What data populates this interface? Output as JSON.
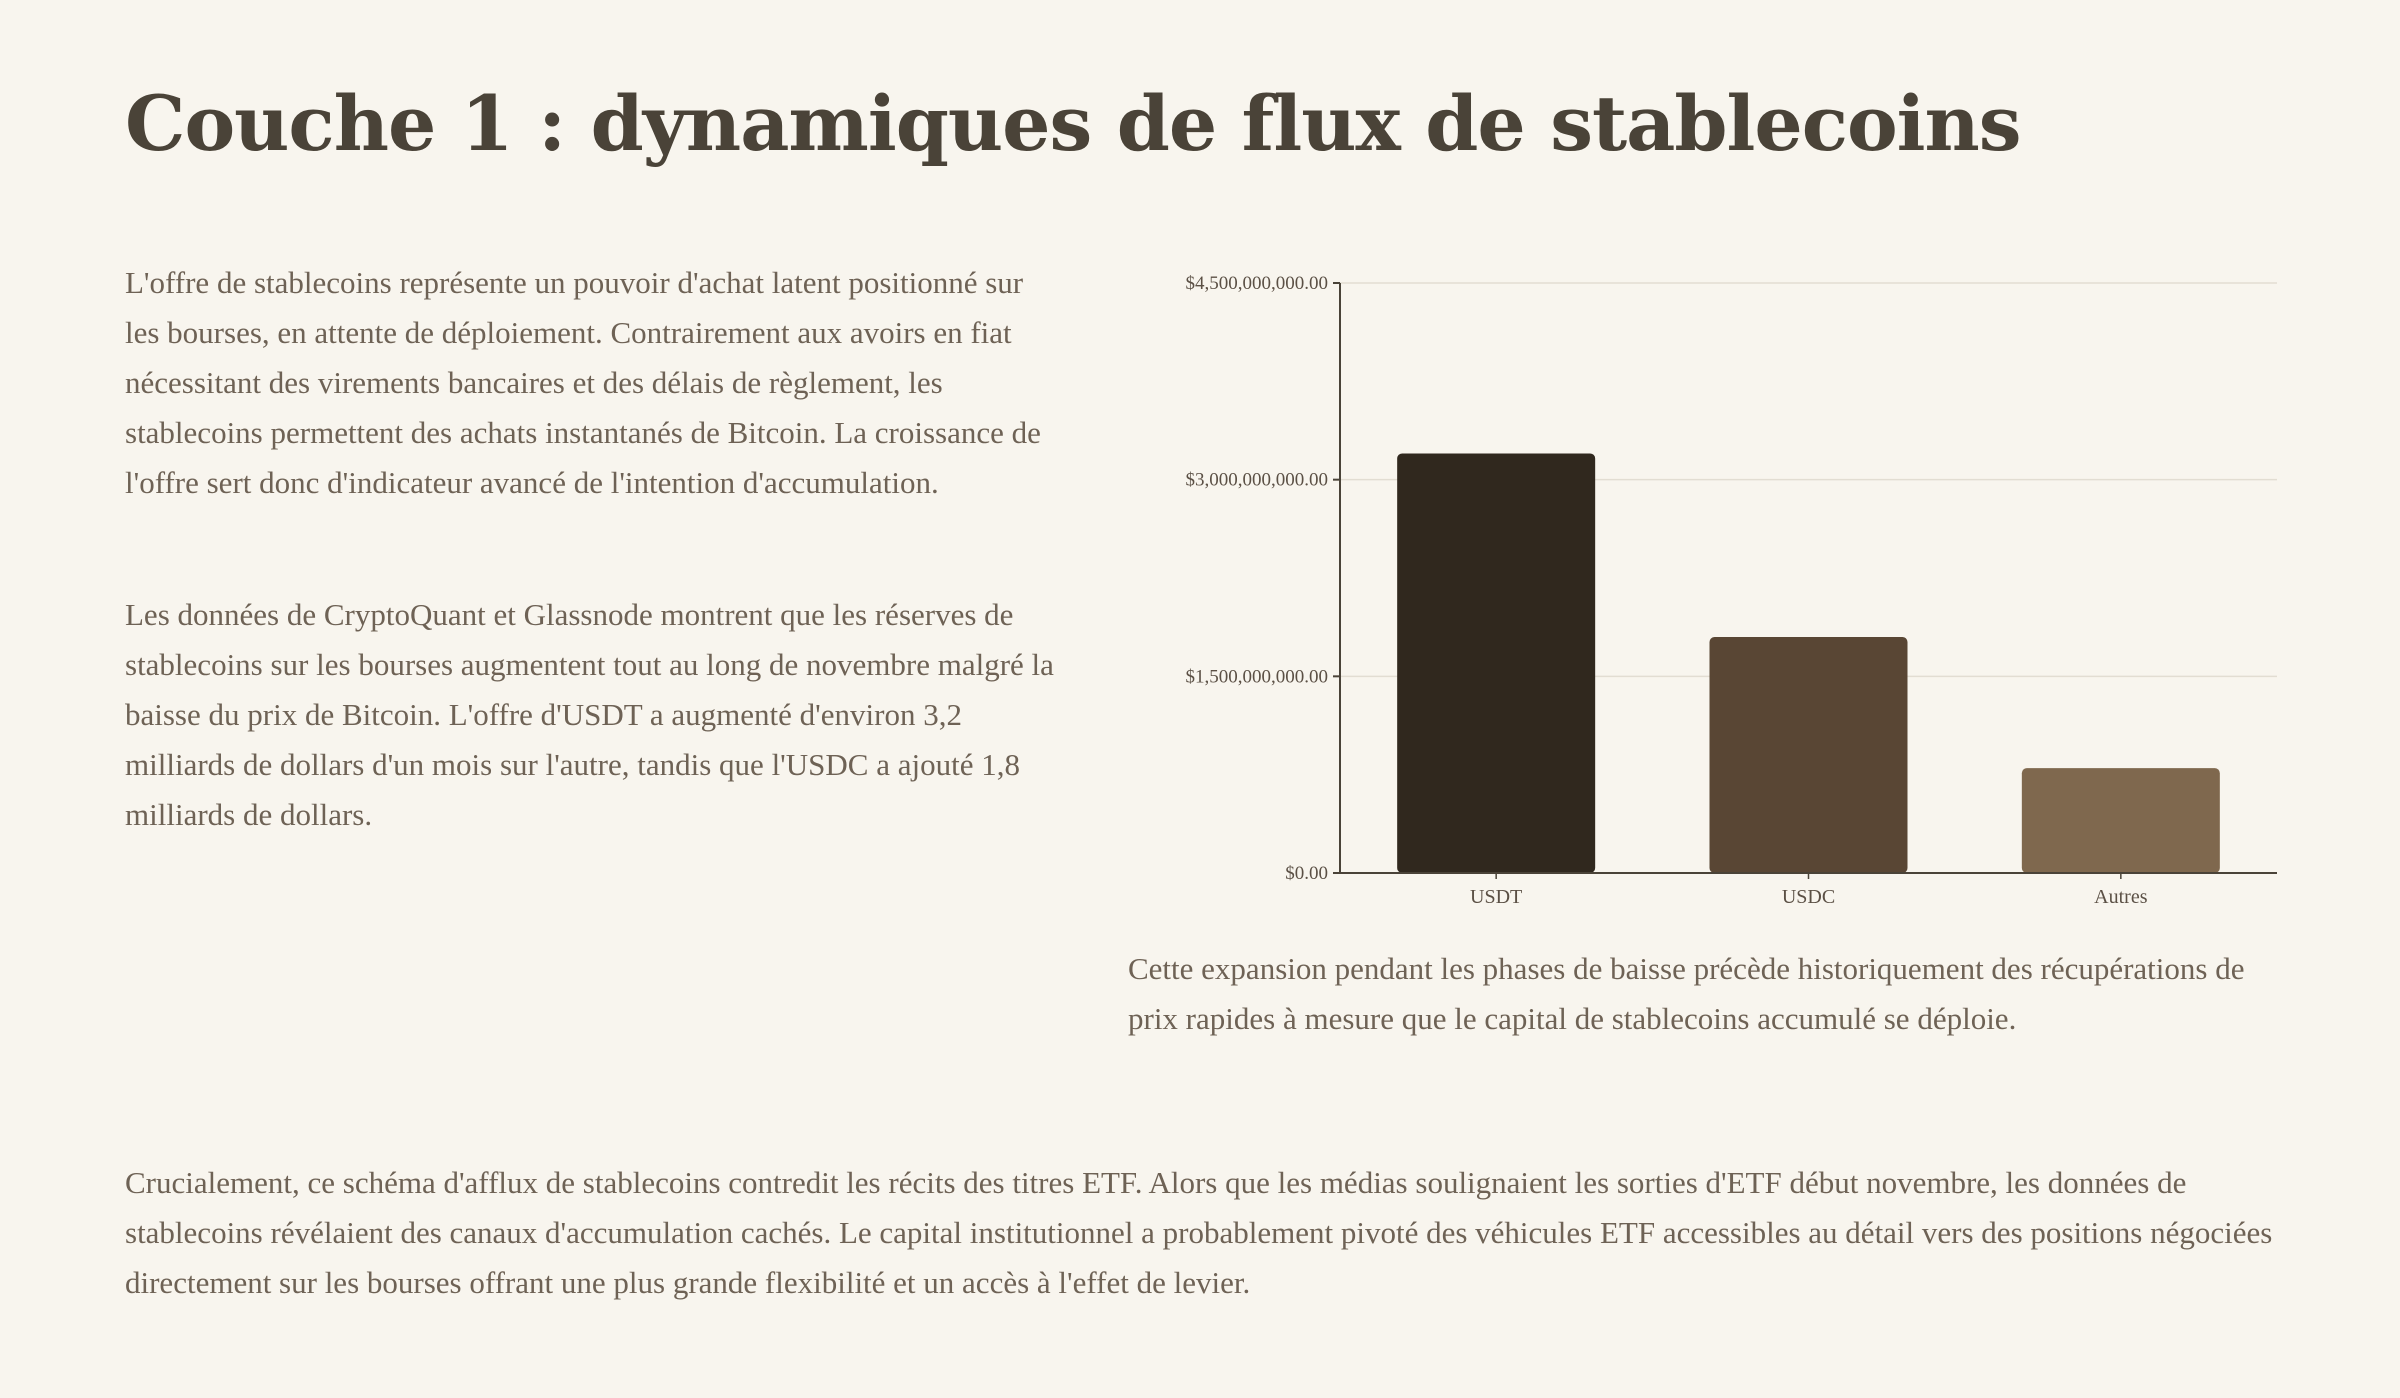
{
  "page": {
    "title": "Couche 1 : dynamiques de flux de stablecoins",
    "paragraph_1": "L'offre de stablecoins représente un pouvoir d'achat latent positionné sur les bourses, en attente de déploiement. Contrairement aux avoirs en fiat nécessitant des virements bancaires et des délais de règlement, les stablecoins permettent des achats instantanés de Bitcoin. La croissance de l'offre sert donc d'indicateur avancé de l'intention d'accumulation.",
    "paragraph_2": "Les données de CryptoQuant et Glassnode montrent que les réserves de stablecoins sur les bourses augmentent tout au long de novembre malgré la baisse du prix de Bitcoin. L'offre d'USDT a augmenté d'environ 3,2 milliards de dollars d'un mois sur l'autre, tandis que l'USDC a ajouté 1,8 milliards de dollars.",
    "paragraph_3": "Cette expansion pendant les phases de baisse précède historiquement des récupérations de prix rapides à mesure que le capital de stablecoins accumulé se déploie.",
    "paragraph_4": "Crucialement, ce schéma d'afflux de stablecoins contredit les récits des titres ETF. Alors que les médias soulignaient les sorties d'ETF début novembre, les données de stablecoins révélaient des canaux d'accumulation cachés. Le capital institutionnel a probablement pivoté des véhicules ETF accessibles au détail vers des positions négociées directement sur les bourses offrant une plus grande flexibilité et un accès à l'effet de levier."
  },
  "chart_data": {
    "type": "bar",
    "categories": [
      "USDT",
      "USDC",
      "Autres"
    ],
    "values": [
      3200000000,
      1800000000,
      800000000
    ],
    "colors": [
      "#30281e",
      "#594634",
      "#7f684e"
    ],
    "title": "",
    "xlabel": "",
    "ylabel": "",
    "ylim": [
      0,
      4500000000
    ],
    "yticks": [
      0,
      1500000000,
      3000000000,
      4500000000
    ],
    "ytick_labels": [
      "$0.00",
      "$1,500,000,000.00",
      "$3,000,000,000.00",
      "$4,500,000,000.00"
    ],
    "grid": true,
    "legend": "none"
  }
}
